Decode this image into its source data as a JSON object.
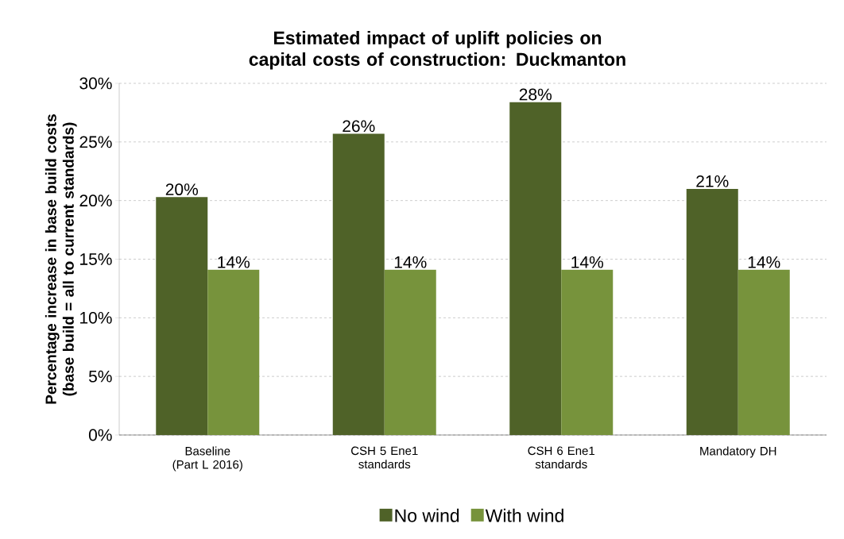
{
  "chart_data": {
    "type": "bar",
    "title": "Estimated impact of uplift policies on capital costs of construction: Duckmanton",
    "ylabel": "Percentage increase in base build costs (base build = all to current standards)",
    "categories": [
      "Baseline (Part L 2016)",
      "CSH 5 Ene1 standards",
      "CSH 6 Ene1 standards",
      "Mandatory DH"
    ],
    "series": [
      {
        "name": "No wind",
        "color": "#4f6228",
        "values": [
          20.3,
          25.7,
          28.4,
          21.0
        ],
        "value_labels": [
          "20%",
          "26%",
          "28%",
          "21%"
        ]
      },
      {
        "name": "With wind",
        "color": "#77933c",
        "values": [
          14.1,
          14.1,
          14.1,
          14.1
        ],
        "value_labels": [
          "14%",
          "14%",
          "14%",
          "14%"
        ]
      }
    ],
    "ylim": [
      0,
      30
    ],
    "yticks": [
      {
        "value": 0,
        "label": "0%"
      },
      {
        "value": 5,
        "label": "5%"
      },
      {
        "value": 10,
        "label": "10%"
      },
      {
        "value": 15,
        "label": "15%"
      },
      {
        "value": 20,
        "label": "20%"
      },
      {
        "value": 25,
        "label": "25%"
      },
      {
        "value": 30,
        "label": "30%"
      }
    ],
    "grid": "y",
    "legend": "bottom"
  }
}
